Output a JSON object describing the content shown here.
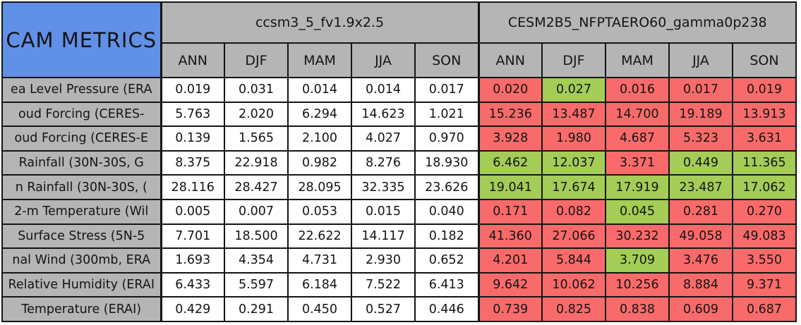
{
  "title": "CAM METRICS",
  "colors": {
    "title_bg": "#6190E8",
    "header_bg": "#B5B5B5",
    "model1_cell_bg": "#FFFFFF",
    "model2_red": "#F96B6B",
    "model2_green": "#A3CD57",
    "border": "#141414",
    "text": "#141414"
  },
  "header": {
    "groups": [
      {
        "name": "ccsm3_5_fv1.9x2.5",
        "seasons": [
          "ANN",
          "DJF",
          "MAM",
          "JJA",
          "SON"
        ]
      },
      {
        "name": "CESM2B5_NFPTAERO60_gamma0p238",
        "seasons": [
          "ANN",
          "DJF",
          "MAM",
          "JJA",
          "SON"
        ]
      }
    ]
  },
  "table": {
    "rows": [
      {
        "label": "ea Level Pressure (ERA",
        "model1": [
          "0.019",
          "0.031",
          "0.014",
          "0.014",
          "0.017"
        ],
        "model2": [
          "0.020",
          "0.027",
          "0.016",
          "0.017",
          "0.019"
        ],
        "model2_colors": [
          "red",
          "green",
          "red",
          "red",
          "red"
        ]
      },
      {
        "label": "oud Forcing (CERES-",
        "model1": [
          "5.763",
          "2.020",
          "6.294",
          "14.623",
          "1.021"
        ],
        "model2": [
          "15.236",
          "13.487",
          "14.700",
          "19.189",
          "13.913"
        ],
        "model2_colors": [
          "red",
          "red",
          "red",
          "red",
          "red"
        ]
      },
      {
        "label": "oud Forcing (CERES-E",
        "model1": [
          "0.139",
          "1.565",
          "2.100",
          "4.027",
          "0.970"
        ],
        "model2": [
          "3.928",
          "1.980",
          "4.687",
          "5.323",
          "3.631"
        ],
        "model2_colors": [
          "red",
          "red",
          "red",
          "red",
          "red"
        ]
      },
      {
        "label": "Rainfall (30N-30S, G",
        "model1": [
          "8.375",
          "22.918",
          "0.982",
          "8.276",
          "18.930"
        ],
        "model2": [
          "6.462",
          "12.037",
          "3.371",
          "0.449",
          "11.365"
        ],
        "model2_colors": [
          "green",
          "green",
          "red",
          "green",
          "green"
        ]
      },
      {
        "label": "n Rainfall (30N-30S, (",
        "model1": [
          "28.116",
          "28.427",
          "28.095",
          "32.335",
          "23.626"
        ],
        "model2": [
          "19.041",
          "17.674",
          "17.919",
          "23.487",
          "17.062"
        ],
        "model2_colors": [
          "green",
          "green",
          "green",
          "green",
          "green"
        ]
      },
      {
        "label": "2-m Temperature (Wil",
        "model1": [
          "0.005",
          "0.007",
          "0.053",
          "0.015",
          "0.040"
        ],
        "model2": [
          "0.171",
          "0.082",
          "0.045",
          "0.281",
          "0.270"
        ],
        "model2_colors": [
          "red",
          "red",
          "green",
          "red",
          "red"
        ]
      },
      {
        "label": "Surface Stress (5N-5",
        "model1": [
          "7.701",
          "18.500",
          "22.622",
          "14.117",
          "0.182"
        ],
        "model2": [
          "41.360",
          "27.066",
          "30.232",
          "49.058",
          "49.083"
        ],
        "model2_colors": [
          "red",
          "red",
          "red",
          "red",
          "red"
        ]
      },
      {
        "label": "nal Wind (300mb, ERA",
        "model1": [
          "1.693",
          "4.354",
          "4.731",
          "2.930",
          "0.652"
        ],
        "model2": [
          "4.201",
          "5.844",
          "3.709",
          "3.476",
          "3.550"
        ],
        "model2_colors": [
          "red",
          "red",
          "green",
          "red",
          "red"
        ]
      },
      {
        "label": "Relative Humidity (ERAI",
        "model1": [
          "6.433",
          "5.597",
          "6.184",
          "7.522",
          "6.413"
        ],
        "model2": [
          "9.642",
          "10.062",
          "10.256",
          "8.884",
          "9.371"
        ],
        "model2_colors": [
          "red",
          "red",
          "red",
          "red",
          "red"
        ]
      },
      {
        "label": "Temperature (ERAI)",
        "model1": [
          "0.429",
          "0.291",
          "0.450",
          "0.527",
          "0.446"
        ],
        "model2": [
          "0.739",
          "0.825",
          "0.838",
          "0.609",
          "0.687"
        ],
        "model2_colors": [
          "red",
          "red",
          "red",
          "red",
          "red"
        ]
      }
    ]
  },
  "chart_data": {
    "type": "table",
    "title": "CAM METRICS",
    "column_groups": [
      "ccsm3_5_fv1.9x2.5",
      "CESM2B5_NFPTAERO60_gamma0p238"
    ],
    "columns": [
      "ANN",
      "DJF",
      "MAM",
      "JJA",
      "SON",
      "ANN",
      "DJF",
      "MAM",
      "JJA",
      "SON"
    ],
    "row_labels": [
      "ea Level Pressure (ERA",
      "oud Forcing (CERES-",
      "oud Forcing (CERES-E",
      "Rainfall (30N-30S, G",
      "n Rainfall (30N-30S, (",
      "2-m Temperature (Wil",
      "Surface Stress (5N-5",
      "nal Wind (300mb, ERA",
      "Relative Humidity (ERAI",
      "Temperature (ERAI)"
    ],
    "rows": [
      [
        0.019,
        0.031,
        0.014,
        0.014,
        0.017,
        0.02,
        0.027,
        0.016,
        0.017,
        0.019
      ],
      [
        5.763,
        2.02,
        6.294,
        14.623,
        1.021,
        15.236,
        13.487,
        14.7,
        19.189,
        13.913
      ],
      [
        0.139,
        1.565,
        2.1,
        4.027,
        0.97,
        3.928,
        1.98,
        4.687,
        5.323,
        3.631
      ],
      [
        8.375,
        22.918,
        0.982,
        8.276,
        18.93,
        6.462,
        12.037,
        3.371,
        0.449,
        11.365
      ],
      [
        28.116,
        28.427,
        28.095,
        32.335,
        23.626,
        19.041,
        17.674,
        17.919,
        23.487,
        17.062
      ],
      [
        0.005,
        0.007,
        0.053,
        0.015,
        0.04,
        0.171,
        0.082,
        0.045,
        0.281,
        0.27
      ],
      [
        7.701,
        18.5,
        22.622,
        14.117,
        0.182,
        41.36,
        27.066,
        30.232,
        49.058,
        49.083
      ],
      [
        1.693,
        4.354,
        4.731,
        2.93,
        0.652,
        4.201,
        5.844,
        3.709,
        3.476,
        3.55
      ],
      [
        6.433,
        5.597,
        6.184,
        7.522,
        6.413,
        9.642,
        10.062,
        10.256,
        8.884,
        9.371
      ],
      [
        0.429,
        0.291,
        0.45,
        0.527,
        0.446,
        0.739,
        0.825,
        0.838,
        0.609,
        0.687
      ]
    ],
    "second_group_cell_colors": [
      [
        "red",
        "green",
        "red",
        "red",
        "red"
      ],
      [
        "red",
        "red",
        "red",
        "red",
        "red"
      ],
      [
        "red",
        "red",
        "red",
        "red",
        "red"
      ],
      [
        "green",
        "green",
        "red",
        "green",
        "green"
      ],
      [
        "green",
        "green",
        "green",
        "green",
        "green"
      ],
      [
        "red",
        "red",
        "green",
        "red",
        "red"
      ],
      [
        "red",
        "red",
        "red",
        "red",
        "red"
      ],
      [
        "red",
        "red",
        "green",
        "red",
        "red"
      ],
      [
        "red",
        "red",
        "red",
        "red",
        "red"
      ],
      [
        "red",
        "red",
        "red",
        "red",
        "red"
      ]
    ],
    "layout": "10 data rows x (1 label column + 2 groups x 5 season columns); first group cells white, second group cells red/green"
  }
}
